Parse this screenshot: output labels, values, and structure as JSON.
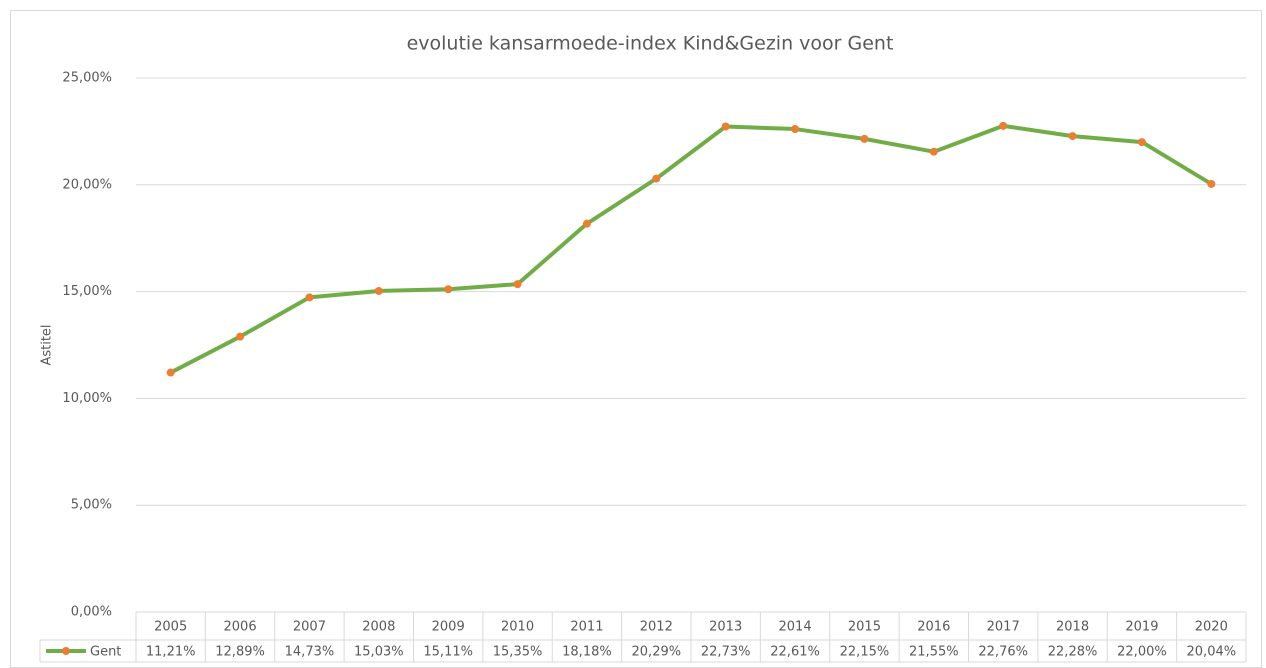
{
  "chart_data": {
    "type": "line",
    "title": "evolutie kansarmoede-index Kind&Gezin voor Gent",
    "y_label": "Astitel",
    "categories": [
      "2005",
      "2006",
      "2007",
      "2008",
      "2009",
      "2010",
      "2011",
      "2012",
      "2013",
      "2014",
      "2015",
      "2016",
      "2017",
      "2018",
      "2019",
      "2020"
    ],
    "series": [
      {
        "name": "Gent",
        "color": "#70ad47",
        "marker_color": "#ed7d31",
        "values": [
          11.21,
          12.89,
          14.73,
          15.03,
          15.11,
          15.35,
          18.18,
          20.29,
          22.73,
          22.61,
          22.15,
          21.55,
          22.76,
          22.28,
          22.0,
          20.04
        ],
        "value_labels": [
          "11,21%",
          "12,89%",
          "14,73%",
          "15,03%",
          "15,11%",
          "15,35%",
          "18,18%",
          "20,29%",
          "22,73%",
          "22,61%",
          "22,15%",
          "21,55%",
          "22,76%",
          "22,28%",
          "22,00%",
          "20,04%"
        ]
      }
    ],
    "ylim": [
      0,
      25
    ],
    "yticks": [
      {
        "value": 0,
        "label": "0,00%"
      },
      {
        "value": 5,
        "label": "5,00%"
      },
      {
        "value": 10,
        "label": "10,00%"
      },
      {
        "value": 15,
        "label": "15,00%"
      },
      {
        "value": 20,
        "label": "20,00%"
      },
      {
        "value": 25,
        "label": "25,00%"
      }
    ],
    "grid": true
  }
}
